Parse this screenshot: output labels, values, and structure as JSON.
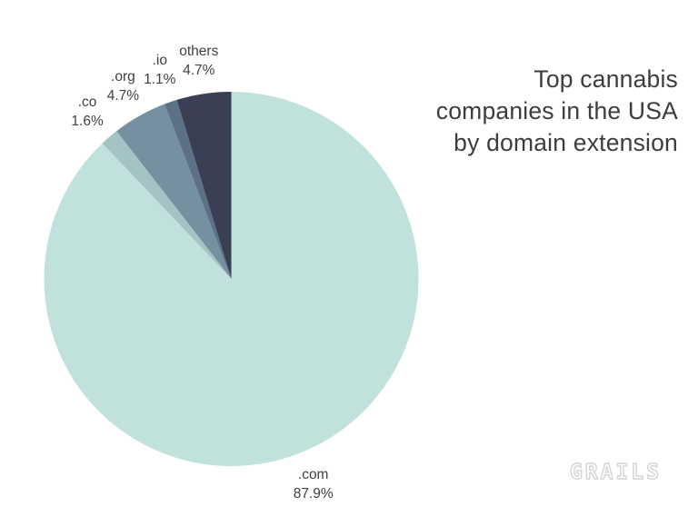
{
  "title": {
    "text": "Top cannabis companies in the USA by domain extension",
    "lines": [
      "Top cannabis",
      "companies in the USA",
      "by domain extension"
    ]
  },
  "logo": {
    "text": "GRAILS"
  },
  "colors": {
    "background": "#ffffff",
    "title_text": "#3d3d3d",
    "label_text": "#3f3f3f",
    "logo": "#d5d5d5"
  },
  "chart_data": {
    "type": "pie",
    "title": "Top cannabis companies in the USA by domain extension",
    "categories": [
      ".com",
      ".co",
      ".org",
      ".io",
      "others"
    ],
    "values": [
      87.9,
      1.6,
      4.7,
      1.1,
      4.7
    ],
    "value_labels": [
      "87.9%",
      "1.6%",
      "4.7%",
      "1.1%",
      "4.7%"
    ],
    "colors": [
      "#c0e1dc",
      "#a3c4c3",
      "#7591a1",
      "#5c7186",
      "#3a3f53"
    ],
    "start_angle_deg": 0,
    "direction": "clockwise",
    "legend": "none",
    "labels_position": "outside",
    "slice_label_format": "{category}\n{value}%"
  }
}
